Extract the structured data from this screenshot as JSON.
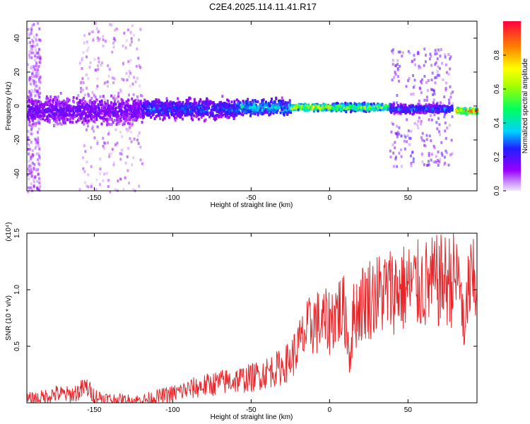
{
  "title": "C2E4.2025.114.11.41.R17",
  "colors": {
    "snr_line": "#e8262a",
    "low": "#9a00ff",
    "high": "#ff1010"
  },
  "chart_data": [
    {
      "type": "heatmap",
      "xlabel": "Height of straight line (km)",
      "ylabel": "Frequency (Hz)",
      "xlim": [
        -193,
        94
      ],
      "ylim": [
        -50,
        50
      ],
      "xticks": [
        "-150",
        "-100",
        "-50",
        "0",
        "50"
      ],
      "xtick_values": [
        -150,
        -100,
        -50,
        0,
        50
      ],
      "yticks": [
        "40",
        "20",
        "0",
        "-20",
        "-40"
      ],
      "ytick_values": [
        40,
        20,
        0,
        -20,
        -40
      ],
      "colorbar": {
        "label": "Normalized spectral amplitude",
        "range": [
          0,
          1
        ],
        "ticks": [
          "0.0",
          "0.2",
          "0.4",
          "0.6",
          "0.8"
        ],
        "tick_values": [
          0.0,
          0.2,
          0.4,
          0.6,
          0.8
        ]
      },
      "bands": [
        {
          "x0": -193,
          "x1": -120,
          "center": -2,
          "halfwidth": 7,
          "amplitude": 0.18
        },
        {
          "x0": -120,
          "x1": -60,
          "center": -1,
          "halfwidth": 5,
          "amplitude": 0.28
        },
        {
          "x0": -60,
          "x1": -25,
          "center": 0,
          "halfwidth": 4,
          "amplitude": 0.38
        },
        {
          "x0": -25,
          "x1": 0,
          "center": 0,
          "halfwidth": 1.5,
          "amplitude": 0.75
        },
        {
          "x0": 0,
          "x1": 38,
          "center": 0,
          "halfwidth": 2,
          "amplitude": 0.6
        },
        {
          "x0": 38,
          "x1": 78,
          "center": -1,
          "halfwidth": 2,
          "amplitude": 0.3
        },
        {
          "x0": 80,
          "x1": 94,
          "center": -2,
          "halfwidth": 1.5,
          "amplitude": 0.85
        }
      ],
      "scatter_regions": [
        {
          "x0": -193,
          "x1": -185,
          "spread": 50,
          "amplitude": 0.1
        },
        {
          "x0": -160,
          "x1": -120,
          "spread": 50,
          "amplitude": 0.08
        },
        {
          "x0": 38,
          "x1": 78,
          "spread": 35,
          "amplitude": 0.15
        }
      ]
    },
    {
      "type": "line",
      "xlabel": "Height of straight line (km)",
      "ylabel": "SNR (10 * v/v)",
      "scale_note": "(x10⁴)",
      "xlim": [
        -193,
        94
      ],
      "ylim": [
        0,
        1.5
      ],
      "xticks": [
        "-150",
        "-100",
        "-50",
        "0",
        "50"
      ],
      "xtick_values": [
        -150,
        -100,
        -50,
        0,
        50
      ],
      "yticks": [
        "1.5",
        "1.0",
        "0.5"
      ],
      "ytick_values": [
        1.5,
        1.0,
        0.5
      ],
      "series": [
        {
          "x": [
            -193,
            -185,
            -175,
            -165,
            -160,
            -155,
            -150,
            -140,
            -130,
            -120,
            -110,
            -100,
            -90,
            -80,
            -70,
            -60,
            -50,
            -40,
            -30,
            -25,
            -20,
            -15,
            -10,
            -5,
            0,
            5,
            10,
            13,
            15,
            20,
            25,
            30,
            35,
            40,
            50,
            60,
            70,
            75,
            80,
            84,
            86,
            88,
            90,
            94
          ],
          "y": [
            0.03,
            0.04,
            0.08,
            0.07,
            0.1,
            0.14,
            0.06,
            0.03,
            0.02,
            0.02,
            0.05,
            0.08,
            0.12,
            0.15,
            0.18,
            0.2,
            0.22,
            0.27,
            0.32,
            0.38,
            0.5,
            0.62,
            0.72,
            0.7,
            0.72,
            0.82,
            0.8,
            0.4,
            0.75,
            0.88,
            0.93,
            0.95,
            0.98,
            1.0,
            1.02,
            1.04,
            1.07,
            1.08,
            1.1,
            1.05,
            0.45,
            1.0,
            1.05,
            1.02
          ]
        }
      ]
    }
  ]
}
